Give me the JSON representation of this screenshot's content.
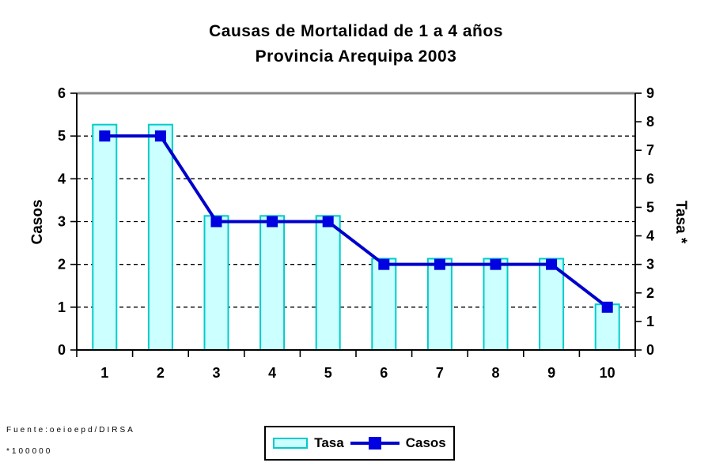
{
  "title": {
    "line1": "Causas de Mortalidad de 1 a 4 años",
    "line2": "Provincia Arequipa 2003"
  },
  "legend": {
    "tasa_label": "Tasa",
    "casos_label": "Casos"
  },
  "footnote": {
    "line1": "Fuente:oeioepd/DIRSA",
    "line2": "*100000"
  },
  "chart_data": {
    "type": "bar",
    "subtype": "combo-bar-line",
    "title": "Causas de Mortalidad de 1 a 4 años — Provincia Arequipa 2003",
    "categories": [
      "1",
      "2",
      "3",
      "4",
      "5",
      "6",
      "7",
      "8",
      "9",
      "10"
    ],
    "series": [
      {
        "name": "Tasa",
        "type": "bar",
        "axis": "right",
        "values": [
          7.9,
          7.9,
          4.7,
          4.7,
          4.7,
          3.2,
          3.2,
          3.2,
          3.2,
          1.6
        ]
      },
      {
        "name": "Casos",
        "type": "line",
        "axis": "left",
        "values": [
          5,
          5,
          3,
          3,
          3,
          2,
          2,
          2,
          2,
          1
        ]
      }
    ],
    "left_axis": {
      "label": "Casos",
      "min": 0,
      "max": 6,
      "ticks": [
        0,
        1,
        2,
        3,
        4,
        5,
        6
      ]
    },
    "right_axis": {
      "label": "Tasa *",
      "min": 0,
      "max": 9,
      "ticks": [
        0,
        1,
        2,
        3,
        4,
        5,
        6,
        7,
        8,
        9
      ]
    },
    "gridlines": {
      "axis": "left",
      "values": [
        1,
        2,
        3,
        4,
        5
      ],
      "style": "dashed"
    },
    "legend_position": "bottom",
    "colors": {
      "bar_fill": "#CCFFFF",
      "bar_stroke": "#00CCCC",
      "line": "#0000CC",
      "marker": "#0000E0",
      "grid": "#000000",
      "axis": "#000000",
      "plot_top_border": "#888888"
    }
  }
}
